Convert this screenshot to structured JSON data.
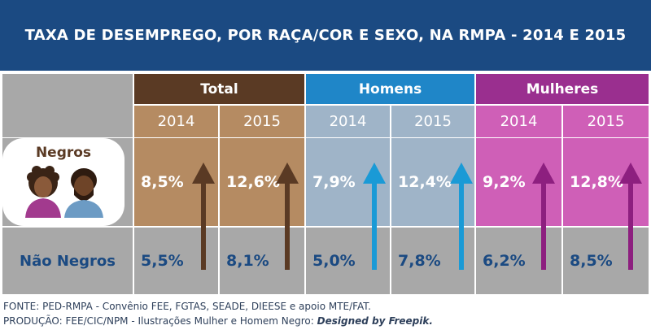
{
  "title": "TAXA DE DESEMPREGO, POR RAÇA/COR E SEXO, NA RMPA - 2014 E 2015",
  "groups": {
    "total": "Total",
    "homens": "Homens",
    "mulheres": "Mulheres"
  },
  "years": [
    "2014",
    "2015"
  ],
  "rows": {
    "negros": "Negros",
    "nao_negros": "Não Negros"
  },
  "values": {
    "negros": [
      "8,5%",
      "12,6%",
      "7,9%",
      "12,4%",
      "9,2%",
      "12,8%"
    ],
    "nao_negros": [
      "5,5%",
      "8,1%",
      "5,0%",
      "7,8%",
      "6,2%",
      "8,5%"
    ]
  },
  "footer": {
    "line1": "FONTE: PED-RMPA - Convênio FEE, FGTAS, SEADE, DIEESE e apoio MTE/FAT.",
    "line2_plain": "PRODUÇÃO: FEE/CIC/NPM - Ilustrações Mulher e Homem Negro:",
    "line2_italic": "Designed by Freepik."
  },
  "colors": {
    "header_bg": "#1b4a82",
    "total_dark": "#5a3a24",
    "total_light": "#b58b62",
    "homens_dark": "#1f86c8",
    "homens_light": "#9fb4c8",
    "mulheres_dark": "#9a2f8f",
    "mulheres_light": "#cf5fb7",
    "gray": "#a8a8a8",
    "arrow_total": "#5a3a24",
    "arrow_homens": "#1a9ad6",
    "arrow_mulheres": "#8d1f7f"
  },
  "chart_data": {
    "type": "table",
    "title": "TAXA DE DESEMPREGO, POR RAÇA/COR E SEXO, NA RMPA - 2014 E 2015",
    "columns": [
      {
        "group": "Total",
        "year": "2014"
      },
      {
        "group": "Total",
        "year": "2015"
      },
      {
        "group": "Homens",
        "year": "2014"
      },
      {
        "group": "Homens",
        "year": "2015"
      },
      {
        "group": "Mulheres",
        "year": "2014"
      },
      {
        "group": "Mulheres",
        "year": "2015"
      }
    ],
    "series": [
      {
        "name": "Negros",
        "values": [
          8.5,
          12.6,
          7.9,
          12.4,
          9.2,
          12.8
        ]
      },
      {
        "name": "Não Negros",
        "values": [
          5.5,
          8.1,
          5.0,
          7.8,
          6.2,
          8.5
        ]
      }
    ]
  }
}
